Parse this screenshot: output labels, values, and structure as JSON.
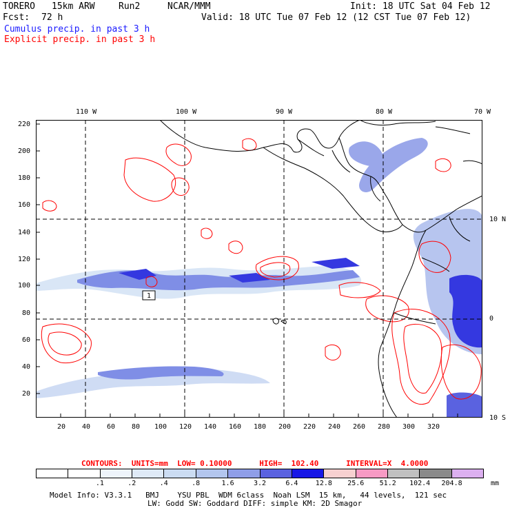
{
  "header": {
    "model": "TORERO",
    "resolution": "15km ARW",
    "run": "Run2",
    "center": "NCAR/MMM",
    "init": "Init: 18 UTC Sat 04 Feb 12",
    "fcst_label": "Fcst:",
    "fcst_value": "72 h",
    "valid": "Valid: 18 UTC Tue 07 Feb 12 (12 CST Tue 07 Feb 12)",
    "line_cumulus": "Cumulus precip. in past 3 h",
    "line_explicit": "Explicit precip. in past 3 h"
  },
  "axes": {
    "top_lon": [
      "110 W",
      "100 W",
      "90 W",
      "80 W",
      "70 W"
    ],
    "right_lat": [
      "10 N",
      "0",
      "10 S"
    ],
    "left_grid": [
      "220",
      "200",
      "180",
      "160",
      "140",
      "120",
      "100",
      "80",
      "60",
      "40",
      "20"
    ],
    "bottom_grid": [
      "20",
      "40",
      "60",
      "80",
      "100",
      "120",
      "140",
      "160",
      "180",
      "200",
      "220",
      "240",
      "260",
      "280",
      "300",
      "320"
    ]
  },
  "map_label": "1",
  "contours": {
    "text": "CONTOURS:  UNITS=mm  LOW= 0.10000      HIGH=  102.40      INTERVAL=X  4.0000"
  },
  "colorbar": {
    "colors": [
      "#ffffff",
      "#ffffff",
      "#eef4fb",
      "#dfeaf7",
      "#cbdcf2",
      "#b3c6ee",
      "#8f9ee8",
      "#5a62e0",
      "#1818e6",
      "#f7d0d0",
      "#f79ac4",
      "#c0c0c0",
      "#8a8a8a",
      "#dcb0f0"
    ],
    "labels": [
      ".1",
      ".2",
      ".4",
      ".8",
      "1.6",
      "3.2",
      "6.4",
      "12.8",
      "25.6",
      "51.2",
      "102.4",
      "204.8"
    ],
    "units": "mm"
  },
  "footer": {
    "line1": "Model Info: V3.3.1   BMJ    YSU PBL  WDM 6class  Noah LSM  15 km,   44 levels,  121 sec",
    "line2": "LW: Godd SW: Goddard DIFF: simple KM: 2D Smagor"
  }
}
